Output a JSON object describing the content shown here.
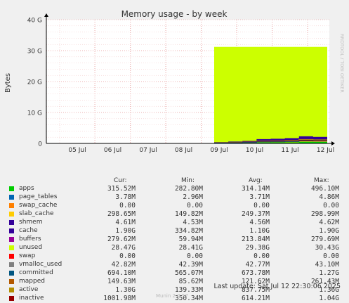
{
  "chart_data": {
    "type": "area",
    "title": "Memory usage - by week",
    "ylabel": "Bytes",
    "watermark": "RRDTOOL / TOBI OETIKER",
    "ylim": [
      0,
      40
    ],
    "yticks": [
      {
        "v": 0,
        "label": "0"
      },
      {
        "v": 10,
        "label": "10 G"
      },
      {
        "v": 20,
        "label": "20 G"
      },
      {
        "v": 30,
        "label": "30 G"
      },
      {
        "v": 40,
        "label": "40 G"
      }
    ],
    "xticks": [
      "05 Jul",
      "06 Jul",
      "07 Jul",
      "08 Jul",
      "09 Jul",
      "10 Jul",
      "11 Jul",
      "12 Jul"
    ],
    "unused_top": 31.2,
    "stacked_top": [
      0.4,
      0.6,
      0.8,
      1.4,
      1.5,
      1.7,
      2.3,
      2.1
    ]
  },
  "legend": {
    "headers": {
      "cur": "Cur:",
      "min": "Min:",
      "avg": "Avg:",
      "max": "Max:"
    },
    "rows": [
      {
        "name": "apps",
        "color": "#00cc00",
        "cur": "315.52M",
        "min": "282.80M",
        "avg": "314.14M",
        "max": "496.10M"
      },
      {
        "name": "page_tables",
        "color": "#0066b3",
        "cur": "3.78M",
        "min": "2.96M",
        "avg": "3.71M",
        "max": "4.86M"
      },
      {
        "name": "swap_cache",
        "color": "#ff8000",
        "cur": "0.00",
        "min": "0.00",
        "avg": "0.00",
        "max": "0.00"
      },
      {
        "name": "slab_cache",
        "color": "#ffcc00",
        "cur": "298.65M",
        "min": "149.82M",
        "avg": "249.37M",
        "max": "298.99M"
      },
      {
        "name": "shmem",
        "color": "#330099",
        "cur": "4.61M",
        "min": "4.53M",
        "avg": "4.56M",
        "max": "4.62M"
      },
      {
        "name": "cache",
        "color": "#330099",
        "cur": "1.90G",
        "min": "334.82M",
        "avg": "1.10G",
        "max": "1.90G"
      },
      {
        "name": "buffers",
        "color": "#990099",
        "cur": "279.62M",
        "min": "59.94M",
        "avg": "213.84M",
        "max": "279.69M"
      },
      {
        "name": "unused",
        "color": "#ccff00",
        "cur": "28.47G",
        "min": "28.41G",
        "avg": "29.38G",
        "max": "30.43G"
      },
      {
        "name": "swap",
        "color": "#ff0000",
        "cur": "0.00",
        "min": "0.00",
        "avg": "0.00",
        "max": "0.00"
      },
      {
        "name": "vmalloc_used",
        "color": "#808080",
        "cur": "42.82M",
        "min": "42.39M",
        "avg": "42.77M",
        "max": "43.10M"
      },
      {
        "name": "committed",
        "color": "#005580",
        "cur": "694.10M",
        "min": "565.07M",
        "avg": "673.78M",
        "max": "1.27G"
      },
      {
        "name": "mapped",
        "color": "#b35900",
        "cur": "149.63M",
        "min": "85.62M",
        "avg": "121.62M",
        "max": "261.43M"
      },
      {
        "name": "active",
        "color": "#b38f00",
        "cur": "1.30G",
        "min": "139.33M",
        "avg": "837.75M",
        "max": "1.36G"
      },
      {
        "name": "inactive",
        "color": "#990000",
        "cur": "1001.98M",
        "min": "350.34M",
        "avg": "614.21M",
        "max": "1.04G"
      }
    ]
  },
  "last_update": "Last update: Sat Jul 12 22:30:06 2025",
  "munin_version": "Munin 2.0.57"
}
